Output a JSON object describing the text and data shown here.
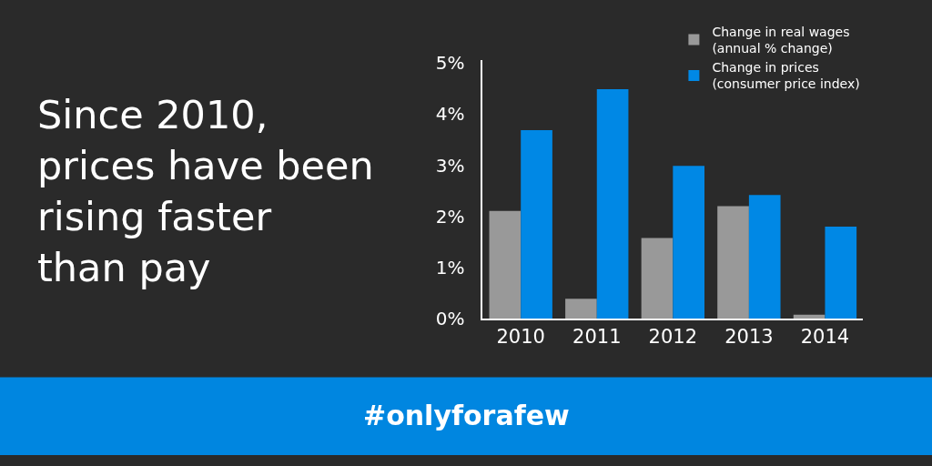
{
  "chart_data": {
    "type": "bar",
    "title": "Since 2010, prices have been rising faster than pay",
    "categories": [
      "2010",
      "2011",
      "2012",
      "2013",
      "2014"
    ],
    "series": [
      {
        "name": "Change in real wages\n(annual % change)",
        "color": "#999999",
        "values": [
          2.11,
          0.39,
          1.58,
          2.2,
          0.08
        ]
      },
      {
        "name": "Change in prices\n(consumer price index)",
        "color": "#0088e5",
        "values": [
          3.69,
          4.49,
          2.99,
          2.42,
          1.8
        ]
      }
    ],
    "ylim": [
      0,
      5.05
    ],
    "yticks": [
      {
        "value": 0,
        "label": "0%"
      },
      {
        "value": 1,
        "label": "1%"
      },
      {
        "value": 2,
        "label": "2%"
      },
      {
        "value": 3,
        "label": "3%"
      },
      {
        "value": 4,
        "label": "4%"
      },
      {
        "value": 5,
        "label": "5%"
      }
    ],
    "annotations": [
      "#onlyforafew"
    ],
    "legend": "top right",
    "grid": false
  }
}
